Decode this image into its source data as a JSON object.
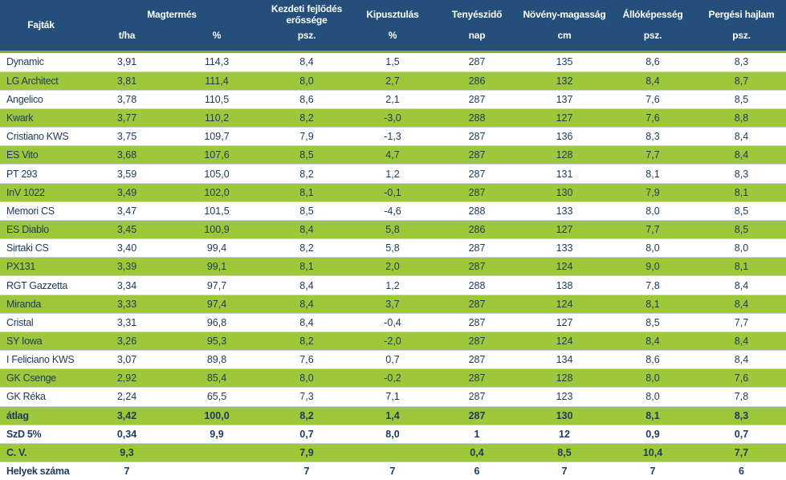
{
  "header": {
    "fajtak": "Fajták",
    "magtermes": "Magtermés",
    "magtermes_unit1": "t/ha",
    "magtermes_unit2": "%",
    "kezdeti": "Kezdeti fejlődés erőssége",
    "kezdeti_unit": "psz.",
    "kipusztulas": "Kipusztulás",
    "kipusztulas_unit": "%",
    "tenyeszido": "Tenyészidő",
    "tenyeszido_unit": "nap",
    "novenymagassag": "Növény-magasság",
    "novenymagassag_unit": "cm",
    "allokepesseg": "Állóképesség",
    "allokepesseg_unit": "psz.",
    "pergesi": "Pergési hajlam",
    "pergesi_unit": "psz."
  },
  "colors": {
    "header_bg": "#234f7a",
    "header_text": "#ffffff",
    "stripe_green": "#9fc73c",
    "header_underline_green": "#7fae36",
    "body_text": "#1d3a5a"
  },
  "chart_data": {
    "type": "table",
    "title": "",
    "columns": [
      "Fajták",
      "Magtermés t/ha",
      "Magtermés %",
      "Kezdeti fejlődés erőssége psz.",
      "Kipusztulás %",
      "Tenyészidő nap",
      "Növény-magasság cm",
      "Állóképesség psz.",
      "Pergési hajlam psz."
    ],
    "rows": [
      {
        "name": "Dynamic",
        "values": [
          "3,91",
          "114,3",
          "8,4",
          "1,5",
          "287",
          "135",
          "8,6",
          "8,3"
        ]
      },
      {
        "name": "LG Architect",
        "values": [
          "3,81",
          "111,4",
          "8,0",
          "2,7",
          "286",
          "132",
          "8,4",
          "8,7"
        ]
      },
      {
        "name": "Angelico",
        "values": [
          "3,78",
          "110,5",
          "8,6",
          "2,1",
          "287",
          "137",
          "7,6",
          "8,5"
        ]
      },
      {
        "name": "Kwark",
        "values": [
          "3,77",
          "110,2",
          "8,2",
          "-3,0",
          "288",
          "127",
          "7,6",
          "8,8"
        ]
      },
      {
        "name": "Cristiano KWS",
        "values": [
          "3,75",
          "109,7",
          "7,9",
          "-1,3",
          "287",
          "136",
          "8,3",
          "8,4"
        ]
      },
      {
        "name": "ES Vito",
        "values": [
          "3,68",
          "107,6",
          "8,5",
          "4,7",
          "287",
          "128",
          "7,7",
          "8,4"
        ]
      },
      {
        "name": "PT 293",
        "values": [
          "3,59",
          "105,0",
          "8,2",
          "1,2",
          "287",
          "131",
          "8,1",
          "8,3"
        ]
      },
      {
        "name": "InV 1022",
        "values": [
          "3,49",
          "102,0",
          "8,1",
          "-0,1",
          "287",
          "130",
          "7,9",
          "8,1"
        ]
      },
      {
        "name": "Memori CS",
        "values": [
          "3,47",
          "101,5",
          "8,5",
          "-4,6",
          "288",
          "133",
          "8,0",
          "8,5"
        ]
      },
      {
        "name": "ES Diablo",
        "values": [
          "3,45",
          "100,9",
          "8,4",
          "5,8",
          "286",
          "127",
          "7,7",
          "8,5"
        ]
      },
      {
        "name": "Sirtaki CS",
        "values": [
          "3,40",
          "99,4",
          "8,2",
          "5,8",
          "287",
          "133",
          "8,0",
          "8,0"
        ]
      },
      {
        "name": "PX131",
        "values": [
          "3,39",
          "99,1",
          "8,1",
          "2,0",
          "287",
          "124",
          "9,0",
          "8,1"
        ]
      },
      {
        "name": "RGT Gazzetta",
        "values": [
          "3,34",
          "97,7",
          "8,4",
          "1,2",
          "288",
          "138",
          "7,8",
          "8,4"
        ]
      },
      {
        "name": "Miranda",
        "values": [
          "3,33",
          "97,4",
          "8,4",
          "3,7",
          "287",
          "124",
          "8,1",
          "8,4"
        ]
      },
      {
        "name": "Cristal",
        "values": [
          "3,31",
          "96,8",
          "8,4",
          "-0,4",
          "287",
          "127",
          "8,5",
          "7,7"
        ]
      },
      {
        "name": "SY Iowa",
        "values": [
          "3,26",
          "95,3",
          "8,2",
          "-2,0",
          "287",
          "124",
          "8,4",
          "8,4"
        ]
      },
      {
        "name": "I Feliciano KWS",
        "values": [
          "3,07",
          "89,8",
          "7,6",
          "0,7",
          "287",
          "134",
          "8,6",
          "8,4"
        ]
      },
      {
        "name": "GK Csenge",
        "values": [
          "2,92",
          "85,4",
          "8,0",
          "-0,2",
          "287",
          "128",
          "8,0",
          "7,6"
        ]
      },
      {
        "name": "GK Réka",
        "values": [
          "2,24",
          "65,5",
          "7,3",
          "7,1",
          "287",
          "123",
          "8,0",
          "7,8"
        ]
      }
    ],
    "summary_rows": [
      {
        "name": "átlag",
        "values": [
          "3,42",
          "100,0",
          "8,2",
          "1,4",
          "287",
          "130",
          "8,1",
          "8,3"
        ]
      },
      {
        "name": "SzD 5%",
        "values": [
          "0,34",
          "9,9",
          "0,7",
          "8,0",
          "1",
          "12",
          "0,9",
          "0,7"
        ]
      },
      {
        "name": "C. V.",
        "values": [
          "9,3",
          "",
          "7,9",
          "",
          "0,4",
          "8,5",
          "10,4",
          "7,7"
        ]
      },
      {
        "name": "Helyek száma",
        "values": [
          "7",
          "",
          "7",
          "7",
          "6",
          "7",
          "7",
          "6"
        ]
      }
    ]
  }
}
